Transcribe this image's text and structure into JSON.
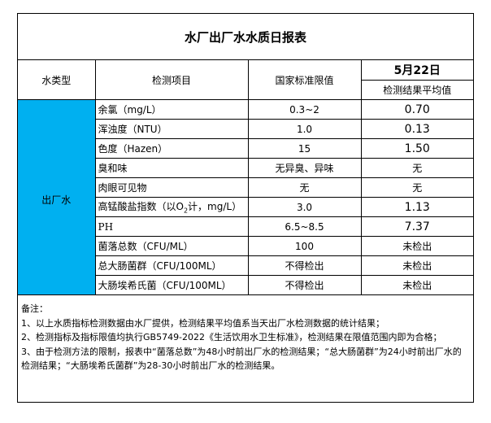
{
  "title": "水厂出厂水水质日报表",
  "header": {
    "water_type": "水类型",
    "item": "检测项目",
    "standard": "国家标准限值",
    "date": "5月22日",
    "result": "检测结果平均值"
  },
  "water_type_value": "出厂水",
  "colors": {
    "type_cell": "#00B0F0"
  },
  "rows": [
    {
      "item": "余氯（mg/L）",
      "standard": "0.3~2",
      "result": "0.70"
    },
    {
      "item": "浑浊度（NTU）",
      "standard": "1.0",
      "result": "0.13"
    },
    {
      "item": "色度（Hazen）",
      "standard": "15",
      "result": "1.50"
    },
    {
      "item": "臭和味",
      "standard": "无异臭、异味",
      "result": "无"
    },
    {
      "item": "肉眼可见物",
      "standard": "无",
      "result": "无"
    },
    {
      "item_prefix": "高锰酸盐指数（以O",
      "item_sub": "2",
      "item_suffix": "计，mg/L）",
      "standard": "3.0",
      "result": "1.13"
    },
    {
      "item": "PH",
      "standard": "6.5~8.5",
      "result": "7.37"
    },
    {
      "item": "菌落总数（CFU/ML）",
      "standard": "100",
      "result": "未检出"
    },
    {
      "item": "总大肠菌群（CFU/100ML）",
      "standard": "不得检出",
      "result": "未检出"
    },
    {
      "item": "大肠埃希氏菌（CFU/100ML）",
      "standard": "不得检出",
      "result": "未检出"
    }
  ],
  "notes": {
    "heading": "备注：",
    "lines": [
      "1、以上水质指标检测数据由水厂提供，检测结果平均值系当天出厂水检测数据的统计结果；",
      "2、检测指标及指标限值均执行GB5749-2022《生活饮用水卫生标准》，检测结果在限值范围内即为合格；",
      "3、由于检测方法的限制，报表中“菌落总数”为48小时前出厂水的检测结果；“总大肠菌群”为24小时前出厂水的检测结果；“大肠埃希氏菌群”为28-30小时前出厂水的检测结果。"
    ]
  }
}
